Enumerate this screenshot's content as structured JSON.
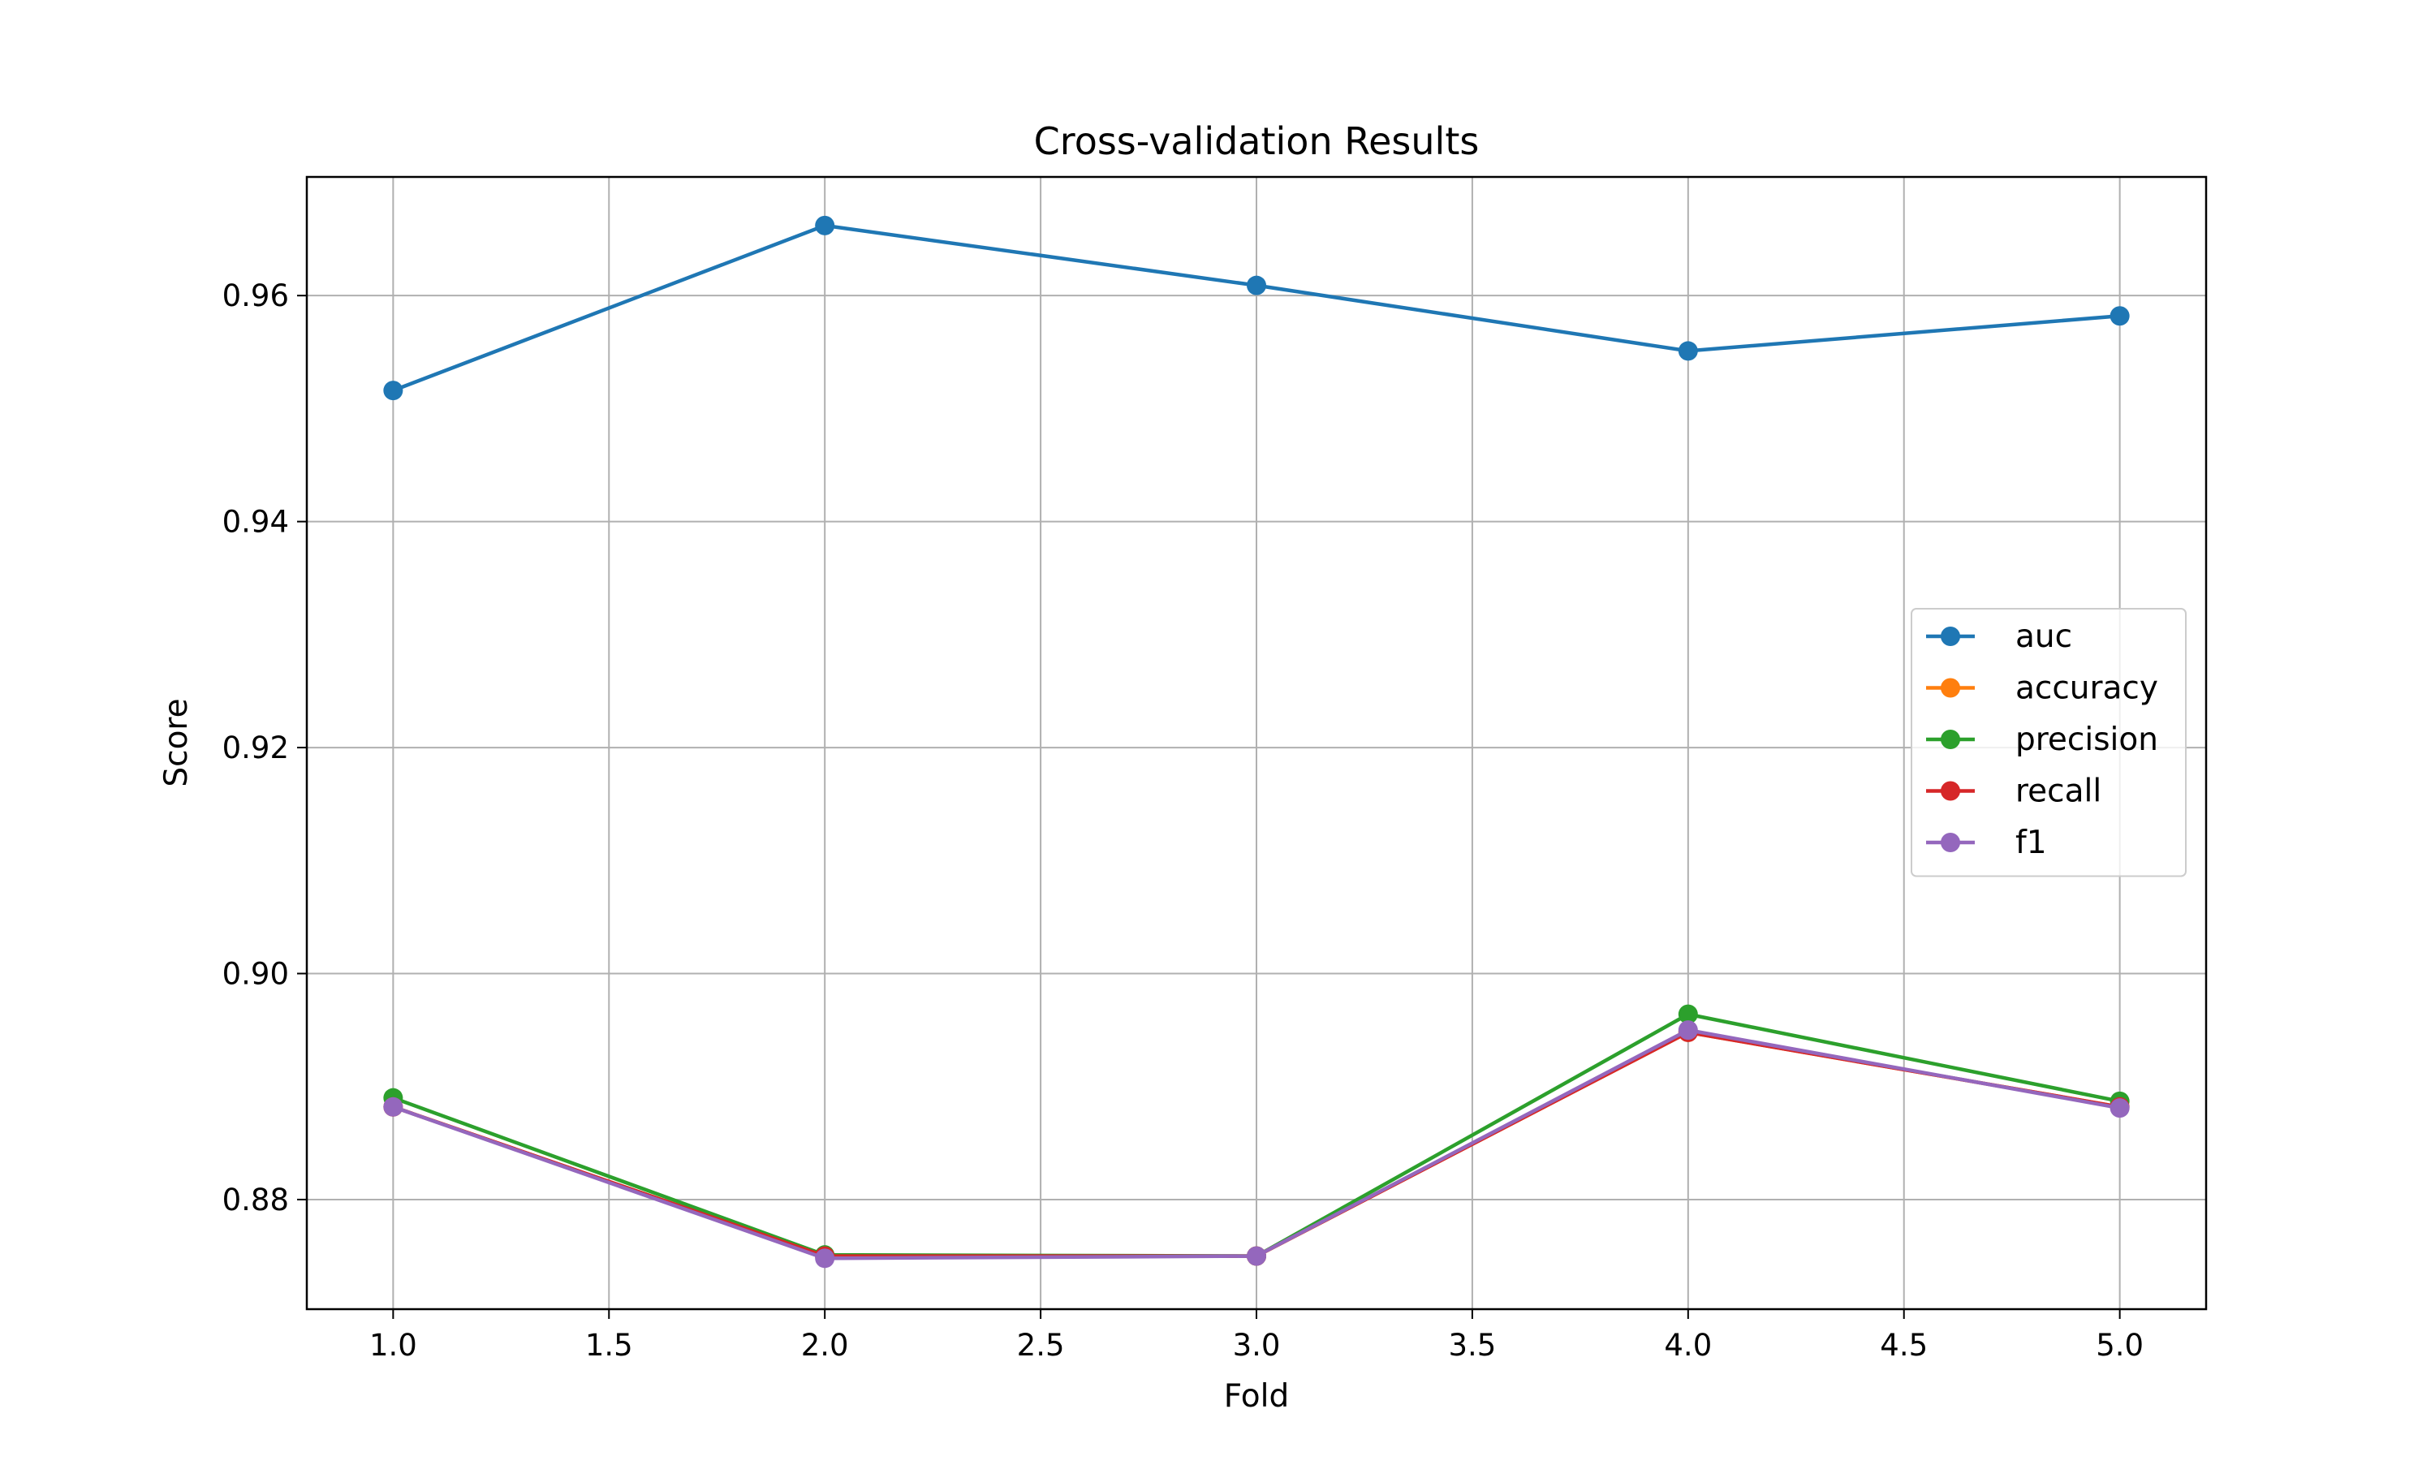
{
  "chart_data": {
    "type": "line",
    "title": "Cross-validation Results",
    "xlabel": "Fold",
    "ylabel": "Score",
    "xlim": [
      0.8,
      5.2
    ],
    "ylim": [
      0.8703,
      0.9705
    ],
    "xticks": [
      1.0,
      1.5,
      2.0,
      2.5,
      3.0,
      3.5,
      4.0,
      4.5,
      5.0
    ],
    "xtick_labels": [
      "1.0",
      "1.5",
      "2.0",
      "2.5",
      "3.0",
      "3.5",
      "4.0",
      "4.5",
      "5.0"
    ],
    "yticks": [
      0.88,
      0.9,
      0.92,
      0.94,
      0.96
    ],
    "ytick_labels": [
      "0.88",
      "0.90",
      "0.92",
      "0.94",
      "0.96"
    ],
    "grid": true,
    "legend_position": "center-right",
    "x": [
      1,
      2,
      3,
      4,
      5
    ],
    "series": [
      {
        "name": "auc",
        "color": "#1f77b4",
        "values": [
          0.9516,
          0.9662,
          0.9609,
          0.9551,
          0.9582
        ]
      },
      {
        "name": "accuracy",
        "color": "#ff7f0e",
        "values": [
          0.8882,
          0.875,
          0.875,
          0.8948,
          0.8882
        ]
      },
      {
        "name": "precision",
        "color": "#2ca02c",
        "values": [
          0.889,
          0.8751,
          0.875,
          0.8964,
          0.8887
        ]
      },
      {
        "name": "recall",
        "color": "#d62728",
        "values": [
          0.8882,
          0.875,
          0.875,
          0.8948,
          0.8882
        ]
      },
      {
        "name": "f1",
        "color": "#9467bd",
        "values": [
          0.8882,
          0.8748,
          0.875,
          0.895,
          0.8881
        ]
      }
    ]
  }
}
